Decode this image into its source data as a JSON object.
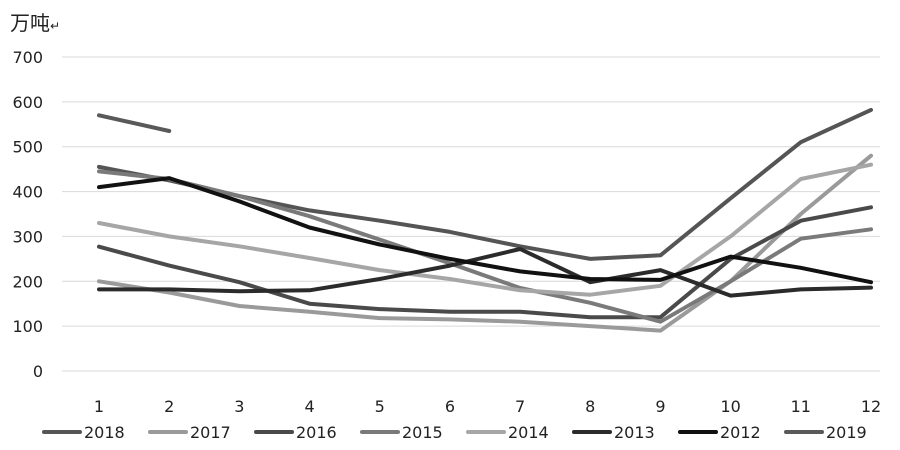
{
  "chart_data": {
    "type": "line",
    "unit_label": "万吨",
    "unit_mark": "↵",
    "x": [
      1,
      2,
      3,
      4,
      5,
      6,
      7,
      8,
      9,
      10,
      11,
      12
    ],
    "ylim": [
      0,
      700
    ],
    "yticks": [
      0,
      100,
      200,
      300,
      400,
      500,
      600,
      700
    ],
    "grid": "horizontal",
    "legend_position": "bottom",
    "series": [
      {
        "name": "2018",
        "color": "#555555",
        "values": [
          455,
          425,
          390,
          358,
          335,
          310,
          278,
          250,
          258,
          385,
          510,
          582
        ]
      },
      {
        "name": "2017",
        "color": "#9a9a9a",
        "values": [
          200,
          175,
          145,
          132,
          118,
          115,
          110,
          100,
          90,
          200,
          350,
          480
        ]
      },
      {
        "name": "2016",
        "color": "#4a4a4a",
        "values": [
          277,
          235,
          198,
          150,
          138,
          132,
          132,
          120,
          120,
          250,
          335,
          365
        ]
      },
      {
        "name": "2015",
        "color": "#7a7a7a",
        "values": [
          445,
          428,
          390,
          345,
          293,
          240,
          185,
          152,
          110,
          200,
          295,
          316
        ]
      },
      {
        "name": "2014",
        "color": "#a6a6a6",
        "values": [
          330,
          300,
          278,
          252,
          225,
          205,
          180,
          170,
          190,
          300,
          428,
          460
        ]
      },
      {
        "name": "2013",
        "color": "#2b2b2b",
        "values": [
          182,
          182,
          178,
          180,
          205,
          235,
          272,
          198,
          225,
          168,
          182,
          186
        ]
      },
      {
        "name": "2012",
        "color": "#111111",
        "values": [
          410,
          430,
          378,
          320,
          282,
          250,
          222,
          205,
          203,
          255,
          230,
          198
        ]
      },
      {
        "name": "2019",
        "color": "#595959",
        "values": [
          570,
          535,
          null,
          null,
          null,
          null,
          null,
          null,
          null,
          null,
          null,
          null
        ]
      }
    ]
  }
}
